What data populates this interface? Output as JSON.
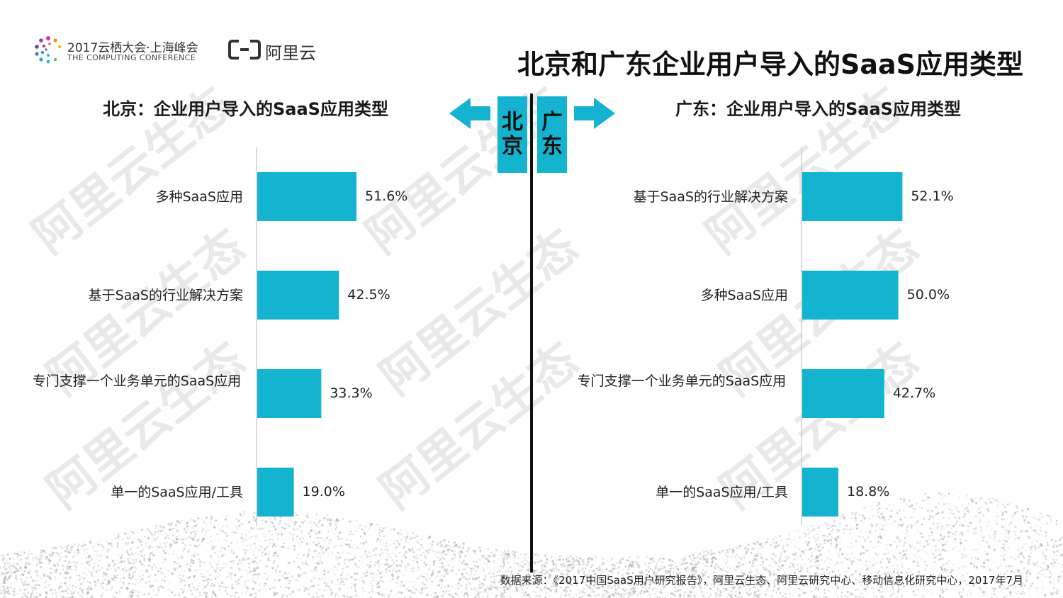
{
  "header": {
    "conference_name": "2017云栖大会·上海峰会",
    "conference_sub": "THE COMPUTING CONFERENCE",
    "brand": "阿里云",
    "title": "北京和广东企业用户导入的SaaS应用类型"
  },
  "city_tags": {
    "beijing": "北京",
    "guangdong": "广东"
  },
  "watermark": "阿里云生态",
  "chart_data": [
    {
      "type": "bar",
      "orientation": "horizontal",
      "title": "北京：企业用户导入的SaaS应用类型",
      "categories": [
        "多种SaaS应用",
        "基于SaaS的行业解决方案",
        "专门支撑一个业务单元的SaaS应用",
        "单一的SaaS应用/工具"
      ],
      "values": [
        51.6,
        42.5,
        33.3,
        19.0
      ],
      "value_labels": [
        "51.6%",
        "42.5%",
        "33.3%",
        "19.0%"
      ],
      "xlim": [
        0,
        100
      ],
      "color": "#14b3d0"
    },
    {
      "type": "bar",
      "orientation": "horizontal",
      "title": "广东：企业用户导入的SaaS应用类型",
      "categories": [
        "基于SaaS的行业解决方案",
        "多种SaaS应用",
        "专门支撑一个业务单元的SaaS应用",
        "单一的SaaS应用/工具"
      ],
      "values": [
        52.1,
        50.0,
        42.7,
        18.8
      ],
      "value_labels": [
        "52.1%",
        "50.0%",
        "42.7%",
        "18.8%"
      ],
      "xlim": [
        0,
        100
      ],
      "color": "#14b3d0"
    }
  ],
  "source": "数据来源：《2017中国SaaS用户研究报告》，阿里云生态、阿里云研究中心、移动信息化研究中心，2017年7月"
}
